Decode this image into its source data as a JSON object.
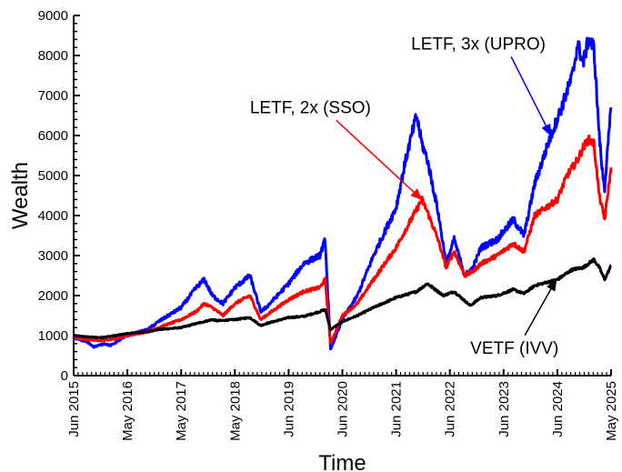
{
  "chart_data": {
    "type": "line",
    "xlabel": "Time",
    "ylabel": "Wealth",
    "ylim": [
      0,
      9000
    ],
    "yticks": [
      0,
      1000,
      2000,
      3000,
      4000,
      5000,
      6000,
      7000,
      8000,
      9000
    ],
    "xticks": [
      {
        "label": "Jun 2015",
        "t": 2015.42
      },
      {
        "label": "May 2016",
        "t": 2016.42
      },
      {
        "label": "May 2017",
        "t": 2017.42
      },
      {
        "label": "May 2018",
        "t": 2018.42
      },
      {
        "label": "Jun 2019",
        "t": 2019.42
      },
      {
        "label": "Jun 2020",
        "t": 2020.42
      },
      {
        "label": "Jun 2021",
        "t": 2021.42
      },
      {
        "label": "Jun 2022",
        "t": 2022.42
      },
      {
        "label": "Jun 2023",
        "t": 2023.42
      },
      {
        "label": "Jun 2024",
        "t": 2024.42
      },
      {
        "label": "May 2025",
        "t": 2025.42
      }
    ],
    "xlim": [
      2015.42,
      2025.42
    ],
    "series": [
      {
        "name": "VETF (IVV)",
        "color": "#000000",
        "x": [
          2015.42,
          2015.65,
          2015.9,
          2016.1,
          2016.42,
          2016.8,
          2017.0,
          2017.42,
          2017.7,
          2018.0,
          2018.1,
          2018.42,
          2018.7,
          2018.9,
          2019.0,
          2019.42,
          2019.7,
          2020.0,
          2020.1,
          2020.2,
          2020.42,
          2020.7,
          2021.0,
          2021.42,
          2021.8,
          2022.0,
          2022.3,
          2022.5,
          2022.8,
          2023.0,
          2023.3,
          2023.6,
          2023.8,
          2024.0,
          2024.42,
          2024.7,
          2024.9,
          2025.0,
          2025.1,
          2025.2,
          2025.3,
          2025.42
        ],
        "y": [
          1000,
          970,
          950,
          980,
          1050,
          1100,
          1150,
          1200,
          1300,
          1400,
          1370,
          1400,
          1450,
          1250,
          1300,
          1450,
          1480,
          1600,
          1650,
          1150,
          1350,
          1500,
          1700,
          1950,
          2100,
          2300,
          2000,
          2100,
          1750,
          1950,
          2000,
          2150,
          2050,
          2250,
          2400,
          2650,
          2700,
          2800,
          2900,
          2700,
          2400,
          2750
        ]
      },
      {
        "name": "LETF, 2x (SSO)",
        "color": "#ff0000",
        "x": [
          2015.42,
          2015.65,
          2015.9,
          2016.1,
          2016.42,
          2016.8,
          2017.0,
          2017.42,
          2017.7,
          2017.85,
          2018.0,
          2018.2,
          2018.42,
          2018.7,
          2018.9,
          2019.0,
          2019.42,
          2019.7,
          2020.0,
          2020.1,
          2020.2,
          2020.42,
          2020.7,
          2021.0,
          2021.42,
          2021.7,
          2021.9,
          2022.0,
          2022.2,
          2022.35,
          2022.5,
          2022.7,
          2022.85,
          2023.0,
          2023.3,
          2023.6,
          2023.8,
          2024.0,
          2024.42,
          2024.6,
          2024.8,
          2024.9,
          2025.0,
          2025.1,
          2025.2,
          2025.3,
          2025.42
        ],
        "y": [
          950,
          900,
          880,
          900,
          1000,
          1100,
          1200,
          1400,
          1600,
          1800,
          1700,
          1500,
          1800,
          2000,
          1400,
          1500,
          1900,
          2100,
          2200,
          2400,
          800,
          1500,
          1800,
          2400,
          3200,
          3900,
          4400,
          4100,
          3400,
          2700,
          3100,
          2500,
          2600,
          2800,
          3000,
          3300,
          3100,
          4000,
          4400,
          5000,
          5400,
          5700,
          5900,
          5800,
          4500,
          3900,
          5200
        ]
      },
      {
        "name": "LETF, 3x (UPRO)",
        "color": "#0000ff",
        "x": [
          2015.42,
          2015.65,
          2015.8,
          2016.0,
          2016.1,
          2016.42,
          2016.8,
          2017.0,
          2017.42,
          2017.7,
          2017.85,
          2018.0,
          2018.2,
          2018.42,
          2018.7,
          2018.9,
          2019.0,
          2019.42,
          2019.7,
          2020.0,
          2020.1,
          2020.2,
          2020.42,
          2020.7,
          2021.0,
          2021.42,
          2021.6,
          2021.8,
          2021.9,
          2022.0,
          2022.2,
          2022.35,
          2022.5,
          2022.7,
          2022.85,
          2023.0,
          2023.3,
          2023.6,
          2023.8,
          2024.0,
          2024.3,
          2024.5,
          2024.7,
          2024.8,
          2024.9,
          2025.0,
          2025.1,
          2025.2,
          2025.25,
          2025.3,
          2025.42
        ],
        "y": [
          950,
          850,
          720,
          800,
          750,
          1000,
          1150,
          1350,
          1700,
          2200,
          2400,
          2000,
          1800,
          2200,
          2500,
          1600,
          1700,
          2300,
          2800,
          3000,
          3400,
          650,
          1400,
          2000,
          3000,
          4200,
          5400,
          6500,
          5800,
          5400,
          4100,
          2800,
          3400,
          2500,
          2700,
          3200,
          3400,
          3900,
          3500,
          4800,
          6000,
          6700,
          7500,
          8300,
          7800,
          8400,
          8200,
          6000,
          5200,
          4700,
          6700
        ]
      }
    ],
    "annotations": [
      {
        "text": "LETF, 3x (UPRO)",
        "color": "#0000ff",
        "text_at": [
          2021.7,
          8150
        ],
        "arrow_to": [
          2024.3,
          6000
        ]
      },
      {
        "text": "LETF, 2x (SSO)",
        "color": "#ff0000",
        "text_at": [
          2018.7,
          6560
        ],
        "arrow_to": [
          2021.9,
          4400
        ]
      },
      {
        "text": "VETF (IVV)",
        "color": "#000000",
        "text_at": [
          2022.8,
          550
        ],
        "arrow_to": [
          2024.4,
          2400
        ]
      }
    ]
  }
}
